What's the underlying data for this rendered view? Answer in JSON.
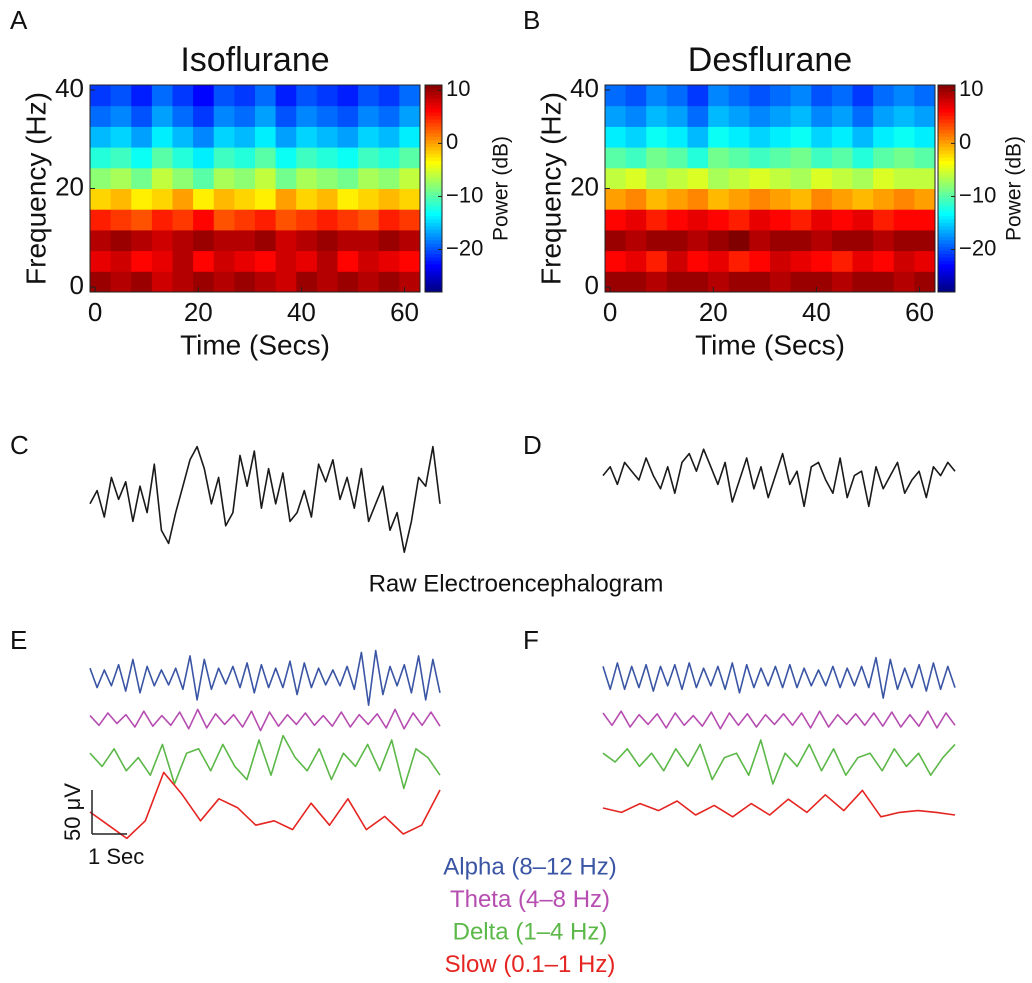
{
  "caption": "Raw Electroencephalogram",
  "chart_data": [
    {
      "type": "heatmap",
      "panel": "A",
      "title": "Isoflurane",
      "xlabel": "Time (Secs)",
      "ylabel": "Frequency (Hz)",
      "xlim": [
        -1,
        63
      ],
      "ylim": [
        -1,
        41
      ],
      "xticks": [
        0,
        20,
        40,
        60
      ],
      "yticks": [
        0,
        20,
        40
      ],
      "x": [
        1,
        5,
        9,
        13,
        17,
        21,
        25,
        29,
        33,
        37,
        41,
        45,
        49,
        53,
        57,
        61
      ],
      "y": [
        1.1,
        5.3,
        9.5,
        13.7,
        17.9,
        22.1,
        26.3,
        30.5,
        34.7,
        38.9
      ],
      "colormap": "jet",
      "colorbar": {
        "label": "Power (dB)",
        "lim": [
          -28,
          11
        ],
        "ticks": [
          10,
          0,
          {
            "value": -10,
            "label": "−10"
          },
          {
            "value": -20,
            "label": "−20"
          }
        ]
      },
      "values": [
        [
          10,
          9,
          10,
          8,
          9,
          10,
          9,
          10,
          9,
          8,
          10,
          9,
          10,
          9,
          10,
          9
        ],
        [
          7,
          8,
          6,
          7,
          9,
          6,
          8,
          7,
          6,
          8,
          7,
          9,
          6,
          8,
          7,
          6
        ],
        [
          9,
          10,
          9,
          8,
          9,
          10,
          9,
          9,
          10,
          8,
          9,
          10,
          9,
          9,
          10,
          9
        ],
        [
          5,
          4,
          3,
          5,
          4,
          6,
          3,
          4,
          5,
          3,
          4,
          5,
          4,
          3,
          5,
          4
        ],
        [
          -2,
          -1,
          -3,
          -2,
          0,
          -3,
          -1,
          -2,
          -3,
          0,
          -2,
          -1,
          -3,
          -2,
          -1,
          -2
        ],
        [
          -8,
          -7,
          -9,
          -6,
          -8,
          -10,
          -7,
          -8,
          -6,
          -9,
          -7,
          -8,
          -9,
          -7,
          -8,
          -6
        ],
        [
          -12,
          -11,
          -13,
          -10,
          -12,
          -14,
          -11,
          -12,
          -10,
          -13,
          -11,
          -12,
          -13,
          -11,
          -12,
          -10
        ],
        [
          -16,
          -15,
          -17,
          -14,
          -16,
          -18,
          -15,
          -16,
          -14,
          -17,
          -15,
          -16,
          -17,
          -15,
          -16,
          -14
        ],
        [
          -19,
          -18,
          -20,
          -17,
          -19,
          -21,
          -18,
          -19,
          -17,
          -20,
          -18,
          -19,
          -20,
          -18,
          -19,
          -17
        ],
        [
          -21,
          -20,
          -22,
          -19,
          -21,
          -23,
          -20,
          -21,
          -19,
          -22,
          -20,
          -21,
          -22,
          -20,
          -21,
          -19
        ]
      ]
    },
    {
      "type": "heatmap",
      "panel": "B",
      "title": "Desflurane",
      "xlabel": "Time (Secs)",
      "ylabel": "Frequency (Hz)",
      "xlim": [
        -1,
        63
      ],
      "ylim": [
        -1,
        41
      ],
      "xticks": [
        0,
        20,
        40,
        60
      ],
      "yticks": [
        0,
        20,
        40
      ],
      "x": [
        1,
        5,
        9,
        13,
        17,
        21,
        25,
        29,
        33,
        37,
        41,
        45,
        49,
        53,
        57,
        61
      ],
      "y": [
        1.1,
        5.3,
        9.5,
        13.7,
        17.9,
        22.1,
        26.3,
        30.5,
        34.7,
        38.9
      ],
      "colormap": "jet",
      "colorbar": {
        "label": "Power (dB)",
        "lim": [
          -28,
          11
        ],
        "ticks": [
          10,
          0,
          {
            "value": -10,
            "label": "−10"
          },
          {
            "value": -20,
            "label": "−20"
          }
        ]
      },
      "values": [
        [
          10,
          10,
          9,
          10,
          10,
          9,
          10,
          10,
          9,
          10,
          10,
          9,
          10,
          10,
          9,
          10
        ],
        [
          6,
          7,
          5,
          8,
          6,
          7,
          5,
          6,
          8,
          7,
          6,
          5,
          7,
          6,
          8,
          7
        ],
        [
          10,
          9,
          10,
          10,
          9,
          10,
          11,
          9,
          10,
          10,
          9,
          10,
          10,
          9,
          10,
          10
        ],
        [
          6,
          7,
          5,
          6,
          7,
          6,
          5,
          7,
          6,
          5,
          7,
          6,
          7,
          5,
          6,
          6
        ],
        [
          0,
          1,
          -1,
          0,
          1,
          -1,
          0,
          1,
          0,
          -1,
          1,
          0,
          -1,
          0,
          1,
          0
        ],
        [
          -6,
          -5,
          -7,
          -6,
          -5,
          -7,
          -6,
          -5,
          -6,
          -7,
          -5,
          -6,
          -7,
          -5,
          -6,
          -6
        ],
        [
          -10,
          -11,
          -9,
          -10,
          -12,
          -9,
          -10,
          -11,
          -10,
          -9,
          -11,
          -10,
          -12,
          -10,
          -9,
          -10
        ],
        [
          -14,
          -15,
          -13,
          -14,
          -16,
          -13,
          -14,
          -15,
          -14,
          -13,
          -15,
          -14,
          -16,
          -14,
          -13,
          -14
        ],
        [
          -17,
          -18,
          -16,
          -17,
          -19,
          -16,
          -17,
          -18,
          -17,
          -16,
          -18,
          -17,
          -19,
          -17,
          -16,
          -17
        ],
        [
          -19,
          -20,
          -18,
          -19,
          -21,
          -18,
          -19,
          -20,
          -19,
          -18,
          -20,
          -19,
          -21,
          -19,
          -18,
          -19
        ]
      ]
    },
    {
      "type": "line",
      "panel": "C",
      "xlim": [
        0,
        10
      ],
      "color": "#1a1a1a",
      "values": [
        -10,
        5,
        -25,
        20,
        -5,
        15,
        -30,
        10,
        -20,
        35,
        -40,
        -55,
        -20,
        10,
        40,
        55,
        30,
        -10,
        20,
        -35,
        -20,
        45,
        10,
        50,
        -15,
        30,
        -10,
        25,
        -30,
        -20,
        5,
        -25,
        35,
        15,
        40,
        -5,
        20,
        -15,
        30,
        -30,
        -10,
        10,
        -40,
        -20,
        -65,
        -30,
        20,
        10,
        55,
        -10
      ]
    },
    {
      "type": "line",
      "panel": "D",
      "xlim": [
        0,
        10
      ],
      "color": "#1a1a1a",
      "values": [
        5,
        15,
        -5,
        20,
        10,
        0,
        25,
        5,
        -10,
        15,
        -15,
        20,
        30,
        10,
        35,
        15,
        -5,
        20,
        -25,
        0,
        25,
        -10,
        15,
        -20,
        5,
        30,
        -5,
        10,
        -30,
        15,
        20,
        0,
        -15,
        25,
        -20,
        5,
        10,
        -30,
        15,
        -10,
        5,
        20,
        -15,
        0,
        10,
        -20,
        15,
        5,
        20,
        10
      ]
    },
    {
      "type": "line",
      "panel": "E",
      "xlim": [
        0,
        10
      ],
      "scale_bar": {
        "y": {
          "value": 50,
          "label": "50 μV"
        },
        "x": {
          "value": 1,
          "label": "1 Sec"
        }
      },
      "series": [
        {
          "name": "Alpha (8–12 Hz)",
          "color": "#3a55a4",
          "values": [
            10,
            -12,
            8,
            -10,
            14,
            -16,
            20,
            -18,
            12,
            -10,
            8,
            -9,
            10,
            -14,
            24,
            -26,
            20,
            -14,
            10,
            -8,
            12,
            -12,
            16,
            -18,
            14,
            -12,
            10,
            -12,
            18,
            -20,
            16,
            -12,
            10,
            -9,
            8,
            -10,
            12,
            -14,
            28,
            -32,
            30,
            -20,
            12,
            -10,
            14,
            -18,
            24,
            -26,
            20,
            -18
          ]
        },
        {
          "name": "Theta (4–8 Hz)",
          "color": "#b64db0",
          "values": [
            5,
            -6,
            8,
            -4,
            6,
            -8,
            10,
            -7,
            5,
            -6,
            9,
            -10,
            12,
            -9,
            7,
            -5,
            6,
            -8,
            10,
            -12,
            9,
            -7,
            6,
            -5,
            8,
            -6,
            5,
            -7,
            9,
            -8,
            6,
            -5,
            7,
            -9,
            12,
            -10,
            8,
            -6,
            9,
            -7
          ]
        },
        {
          "name": "Delta (1–4 Hz)",
          "color": "#5cb848",
          "values": [
            10,
            -5,
            15,
            -10,
            5,
            -15,
            20,
            -25,
            10,
            15,
            -10,
            20,
            -5,
            -20,
            25,
            -15,
            30,
            5,
            -10,
            15,
            -20,
            10,
            -5,
            20,
            -10,
            25,
            -30,
            15,
            5,
            -15
          ]
        },
        {
          "name": "Slow (0.1–1 Hz)",
          "color": "#e52521",
          "values": [
            0,
            -15,
            -30,
            -10,
            45,
            20,
            -10,
            15,
            5,
            -15,
            -10,
            -20,
            10,
            -15,
            15,
            -20,
            -5,
            -25,
            -15,
            25
          ]
        }
      ]
    },
    {
      "type": "line",
      "panel": "F",
      "xlim": [
        0,
        10
      ],
      "series": [
        {
          "color": "#3a55a4",
          "values": [
            12,
            -14,
            16,
            -14,
            12,
            -12,
            14,
            -16,
            12,
            -10,
            14,
            -14,
            16,
            -12,
            10,
            -10,
            12,
            -14,
            16,
            -18,
            14,
            -12,
            10,
            -10,
            12,
            -12,
            14,
            -12,
            10,
            -10,
            8,
            -10,
            12,
            -12,
            10,
            -10,
            12,
            -12,
            22,
            -24,
            20,
            -14,
            10,
            -12,
            14,
            -16,
            16,
            -14,
            12,
            -12
          ]
        },
        {
          "color": "#b64db0",
          "values": [
            8,
            -6,
            10,
            -8,
            6,
            -5,
            7,
            -9,
            8,
            -6,
            5,
            -7,
            9,
            -10,
            8,
            -6,
            7,
            -8,
            6,
            -5,
            7,
            -6,
            8,
            -9,
            10,
            -8,
            6,
            -5,
            7,
            -6,
            8,
            -7,
            9,
            -8,
            6,
            -7,
            10,
            -9,
            8,
            -6
          ]
        },
        {
          "color": "#5cb848",
          "values": [
            10,
            0,
            15,
            -5,
            10,
            -10,
            15,
            -5,
            20,
            -20,
            5,
            10,
            -15,
            25,
            -25,
            10,
            -5,
            20,
            -10,
            15,
            -15,
            5,
            10,
            -10,
            15,
            -5,
            10,
            -15,
            5,
            20
          ]
        },
        {
          "color": "#e52521",
          "values": [
            0,
            -5,
            5,
            -3,
            8,
            -8,
            3,
            -10,
            5,
            -8,
            10,
            -5,
            15,
            -3,
            20,
            -10,
            -5,
            -3,
            -5,
            -8
          ]
        }
      ]
    }
  ]
}
